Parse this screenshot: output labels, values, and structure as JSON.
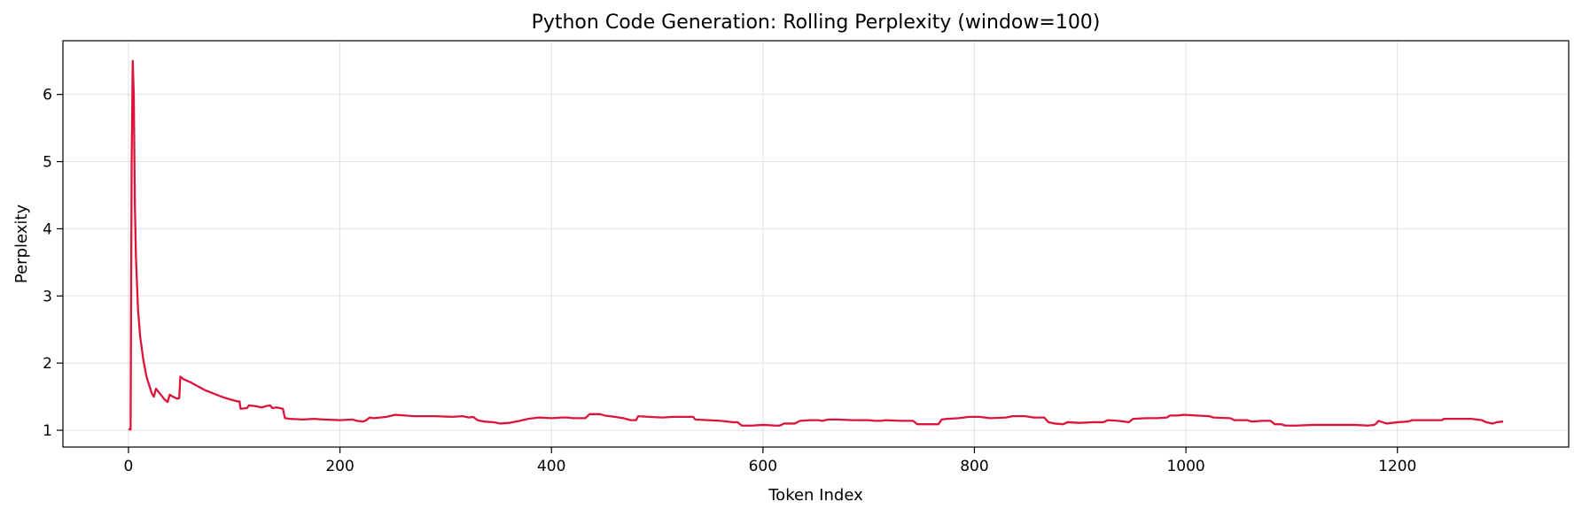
{
  "chart_data": {
    "type": "line",
    "title": "Python Code Generation: Rolling Perplexity (window=100)",
    "xlabel": "Token Index",
    "ylabel": "Perplexity",
    "xlim": [
      -62,
      1362
    ],
    "ylim": [
      0.75,
      6.8
    ],
    "xticks": [
      0,
      200,
      400,
      600,
      800,
      1000,
      1200
    ],
    "yticks": [
      1,
      2,
      3,
      4,
      5,
      6
    ],
    "grid": true,
    "series": [
      {
        "color": "#dc143c",
        "points": [
          [
            0,
            1.02
          ],
          [
            2,
            1.01
          ],
          [
            3,
            5.0
          ],
          [
            4,
            6.5
          ],
          [
            5,
            6.0
          ],
          [
            6,
            4.4
          ],
          [
            7,
            3.6
          ],
          [
            9,
            2.8
          ],
          [
            11,
            2.4
          ],
          [
            14,
            2.05
          ],
          [
            17,
            1.8
          ],
          [
            20,
            1.65
          ],
          [
            22,
            1.55
          ],
          [
            24,
            1.5
          ],
          [
            26,
            1.62
          ],
          [
            28,
            1.58
          ],
          [
            31,
            1.52
          ],
          [
            34,
            1.46
          ],
          [
            37,
            1.42
          ],
          [
            39,
            1.53
          ],
          [
            42,
            1.5
          ],
          [
            46,
            1.47
          ],
          [
            48,
            1.48
          ],
          [
            49,
            1.8
          ],
          [
            52,
            1.76
          ],
          [
            58,
            1.72
          ],
          [
            65,
            1.66
          ],
          [
            72,
            1.6
          ],
          [
            80,
            1.55
          ],
          [
            88,
            1.5
          ],
          [
            96,
            1.46
          ],
          [
            103,
            1.43
          ],
          [
            105,
            1.43
          ],
          [
            106,
            1.32
          ],
          [
            112,
            1.33
          ],
          [
            114,
            1.37
          ],
          [
            120,
            1.36
          ],
          [
            126,
            1.34
          ],
          [
            130,
            1.36
          ],
          [
            134,
            1.37
          ],
          [
            136,
            1.33
          ],
          [
            140,
            1.34
          ],
          [
            146,
            1.32
          ],
          [
            148,
            1.18
          ],
          [
            153,
            1.17
          ],
          [
            165,
            1.16
          ],
          [
            175,
            1.17
          ],
          [
            185,
            1.16
          ],
          [
            200,
            1.15
          ],
          [
            212,
            1.16
          ],
          [
            216,
            1.14
          ],
          [
            222,
            1.13
          ],
          [
            225,
            1.15
          ],
          [
            228,
            1.19
          ],
          [
            232,
            1.18
          ],
          [
            244,
            1.2
          ],
          [
            252,
            1.23
          ],
          [
            262,
            1.22
          ],
          [
            270,
            1.21
          ],
          [
            290,
            1.21
          ],
          [
            306,
            1.2
          ],
          [
            316,
            1.21
          ],
          [
            322,
            1.19
          ],
          [
            326,
            1.2
          ],
          [
            330,
            1.15
          ],
          [
            336,
            1.13
          ],
          [
            345,
            1.12
          ],
          [
            352,
            1.1
          ],
          [
            360,
            1.11
          ],
          [
            370,
            1.14
          ],
          [
            378,
            1.17
          ],
          [
            388,
            1.19
          ],
          [
            400,
            1.18
          ],
          [
            410,
            1.19
          ],
          [
            416,
            1.19
          ],
          [
            420,
            1.18
          ],
          [
            432,
            1.18
          ],
          [
            436,
            1.24
          ],
          [
            446,
            1.24
          ],
          [
            450,
            1.22
          ],
          [
            460,
            1.2
          ],
          [
            468,
            1.18
          ],
          [
            475,
            1.15
          ],
          [
            480,
            1.15
          ],
          [
            482,
            1.21
          ],
          [
            492,
            1.2
          ],
          [
            505,
            1.19
          ],
          [
            515,
            1.2
          ],
          [
            530,
            1.2
          ],
          [
            534,
            1.2
          ],
          [
            536,
            1.16
          ],
          [
            548,
            1.15
          ],
          [
            560,
            1.14
          ],
          [
            572,
            1.12
          ],
          [
            576,
            1.12
          ],
          [
            580,
            1.07
          ],
          [
            590,
            1.07
          ],
          [
            600,
            1.08
          ],
          [
            612,
            1.07
          ],
          [
            616,
            1.07
          ],
          [
            620,
            1.1
          ],
          [
            630,
            1.1
          ],
          [
            635,
            1.14
          ],
          [
            645,
            1.15
          ],
          [
            652,
            1.15
          ],
          [
            656,
            1.14
          ],
          [
            662,
            1.16
          ],
          [
            670,
            1.16
          ],
          [
            685,
            1.15
          ],
          [
            700,
            1.15
          ],
          [
            706,
            1.14
          ],
          [
            712,
            1.14
          ],
          [
            716,
            1.15
          ],
          [
            730,
            1.14
          ],
          [
            742,
            1.14
          ],
          [
            746,
            1.09
          ],
          [
            752,
            1.09
          ],
          [
            766,
            1.09
          ],
          [
            769,
            1.16
          ],
          [
            774,
            1.17
          ],
          [
            785,
            1.18
          ],
          [
            795,
            1.2
          ],
          [
            805,
            1.2
          ],
          [
            815,
            1.18
          ],
          [
            830,
            1.19
          ],
          [
            836,
            1.21
          ],
          [
            848,
            1.21
          ],
          [
            856,
            1.19
          ],
          [
            866,
            1.19
          ],
          [
            870,
            1.12
          ],
          [
            876,
            1.1
          ],
          [
            884,
            1.09
          ],
          [
            888,
            1.12
          ],
          [
            900,
            1.11
          ],
          [
            912,
            1.12
          ],
          [
            922,
            1.12
          ],
          [
            926,
            1.15
          ],
          [
            936,
            1.14
          ],
          [
            946,
            1.12
          ],
          [
            950,
            1.17
          ],
          [
            962,
            1.18
          ],
          [
            972,
            1.18
          ],
          [
            982,
            1.19
          ],
          [
            985,
            1.22
          ],
          [
            992,
            1.22
          ],
          [
            998,
            1.23
          ],
          [
            1010,
            1.22
          ],
          [
            1022,
            1.21
          ],
          [
            1026,
            1.19
          ],
          [
            1042,
            1.18
          ],
          [
            1046,
            1.15
          ],
          [
            1058,
            1.15
          ],
          [
            1062,
            1.13
          ],
          [
            1072,
            1.14
          ],
          [
            1080,
            1.14
          ],
          [
            1084,
            1.09
          ],
          [
            1090,
            1.09
          ],
          [
            1094,
            1.07
          ],
          [
            1105,
            1.07
          ],
          [
            1120,
            1.08
          ],
          [
            1140,
            1.08
          ],
          [
            1160,
            1.08
          ],
          [
            1172,
            1.07
          ],
          [
            1178,
            1.08
          ],
          [
            1180,
            1.1
          ],
          [
            1182,
            1.14
          ],
          [
            1186,
            1.12
          ],
          [
            1190,
            1.1
          ],
          [
            1200,
            1.12
          ],
          [
            1210,
            1.13
          ],
          [
            1214,
            1.15
          ],
          [
            1230,
            1.15
          ],
          [
            1242,
            1.15
          ],
          [
            1244,
            1.17
          ],
          [
            1256,
            1.17
          ],
          [
            1270,
            1.17
          ],
          [
            1280,
            1.15
          ],
          [
            1284,
            1.12
          ],
          [
            1290,
            1.1
          ],
          [
            1294,
            1.12
          ],
          [
            1300,
            1.13
          ]
        ]
      }
    ]
  }
}
